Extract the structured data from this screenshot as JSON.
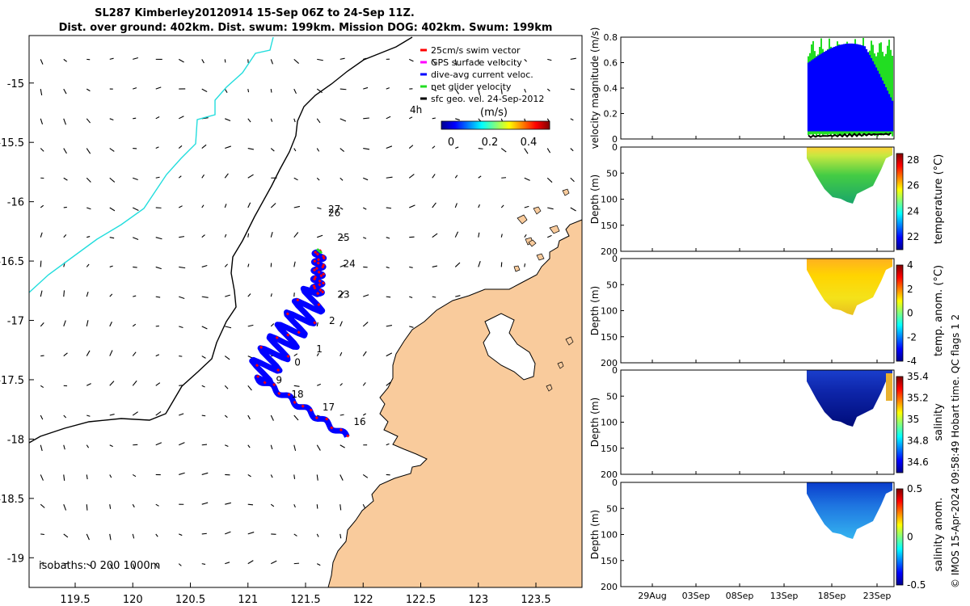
{
  "title_line1": "SL287 Kimberley20120914 15-Sep 06Z to 24-Sep 11Z.",
  "title_line2": "Dist. over ground: 402km. Dist. swum: 199km. Mission DOG: 402km. Swum: 199km",
  "footer_note": "© IMOS 15-Apr-2024 09:58:49 Hobart time. QC flags 1  2",
  "colors": {
    "land": "#f9cb9c",
    "track_blue": "#0000ff",
    "track_red": "#ff0000",
    "net_green": "#22dd22",
    "contour_cyan": "#22dddd"
  },
  "chart_data": [
    {
      "type": "map",
      "lon_ticks": [
        "119.5",
        "120",
        "120.5",
        "121",
        "121.5",
        "122",
        "122.5",
        "123",
        "123.5"
      ],
      "lat_ticks": [
        "-15",
        "-15.5",
        "-16",
        "-16.5",
        "-17",
        "-17.5",
        "-18",
        "-18.5",
        "-19"
      ],
      "lon_range": [
        119.1,
        123.9
      ],
      "lat_range": [
        -19.25,
        -14.6
      ],
      "isobath_label": "isobaths: 0   200  1000m",
      "legend": [
        {
          "label": "25cm/s swim vector",
          "color": "#ff0000"
        },
        {
          "label": "GPS surface velocity",
          "color": "#ff00ff"
        },
        {
          "label": "dive-avg current veloc.",
          "color": "#0000ff"
        },
        {
          "label": "net glider velocity",
          "color": "#22dd22"
        },
        {
          "label": "sfc geo. vel. 24-Sep-2012",
          "color": "#000000"
        }
      ],
      "colorbar_title": "(m/s)",
      "colorbar_ticks": [
        "0",
        "0.2",
        "0.4"
      ],
      "time_marker": "4h",
      "day_labels": [
        {
          "day": "27",
          "lon": 121.75,
          "lat": -16.09
        },
        {
          "day": "26",
          "lon": 121.75,
          "lat": -16.12
        },
        {
          "day": "25",
          "lon": 121.83,
          "lat": -16.33
        },
        {
          "day": "24",
          "lon": 121.88,
          "lat": -16.55
        },
        {
          "day": "23",
          "lon": 121.83,
          "lat": -16.81
        },
        {
          "day": "2",
          "lon": 121.73,
          "lat": -17.03
        },
        {
          "day": "1",
          "lon": 121.62,
          "lat": -17.27
        },
        {
          "day": "0",
          "lon": 121.43,
          "lat": -17.38
        },
        {
          "day": "9",
          "lon": 121.27,
          "lat": -17.53
        },
        {
          "day": "18",
          "lon": 121.43,
          "lat": -17.65
        },
        {
          "day": "17",
          "lon": 121.7,
          "lat": -17.76
        },
        {
          "day": "16",
          "lon": 121.97,
          "lat": -17.88
        }
      ],
      "track_vertices": [
        {
          "lon": 121.86,
          "lat": -17.98
        },
        {
          "lon": 121.08,
          "lat": -17.48
        },
        {
          "lon": 121.6,
          "lat": -16.78
        },
        {
          "lon": 121.62,
          "lat": -16.42
        }
      ]
    },
    {
      "type": "line",
      "ylabel": "velocity magnitude (m/s)",
      "yticks": [
        "0",
        "0.2",
        "0.4",
        "0.6",
        "0.8"
      ],
      "ylim": [
        0,
        0.8
      ],
      "xlim_days": [
        0,
        32
      ]
    },
    {
      "type": "heatmap",
      "ylabel": "Depth (m)",
      "cblabel": "temperature (°C)",
      "yticks": [
        "0",
        "50",
        "100",
        "150",
        "200"
      ],
      "cbticks": [
        "22",
        "24",
        "26",
        "28"
      ],
      "cbrange": [
        21,
        28.5
      ]
    },
    {
      "type": "heatmap",
      "ylabel": "Depth (m)",
      "cblabel": "temp. anom. (°C)",
      "yticks": [
        "0",
        "50",
        "100",
        "150",
        "200"
      ],
      "cbticks": [
        "-4",
        "-2",
        "0",
        "2",
        "4"
      ],
      "cbrange": [
        -4,
        4
      ]
    },
    {
      "type": "heatmap",
      "ylabel": "Depth (m)",
      "cblabel": "salinity",
      "yticks": [
        "0",
        "50",
        "100",
        "150",
        "200"
      ],
      "cbticks": [
        "34.6",
        "34.8",
        "35",
        "35.2",
        "35.4"
      ],
      "cbrange": [
        34.5,
        35.4
      ]
    },
    {
      "type": "heatmap",
      "ylabel": "Depth (m)",
      "cblabel": "salinity anom.",
      "yticks": [
        "0",
        "50",
        "100",
        "150",
        "200"
      ],
      "cbticks": [
        "-0.5",
        "0",
        "0.5"
      ],
      "cbrange": [
        -0.5,
        0.5
      ],
      "xticks": [
        "29Aug",
        "03Sep",
        "08Sep",
        "13Sep",
        "18Sep",
        "23Sep"
      ]
    }
  ]
}
